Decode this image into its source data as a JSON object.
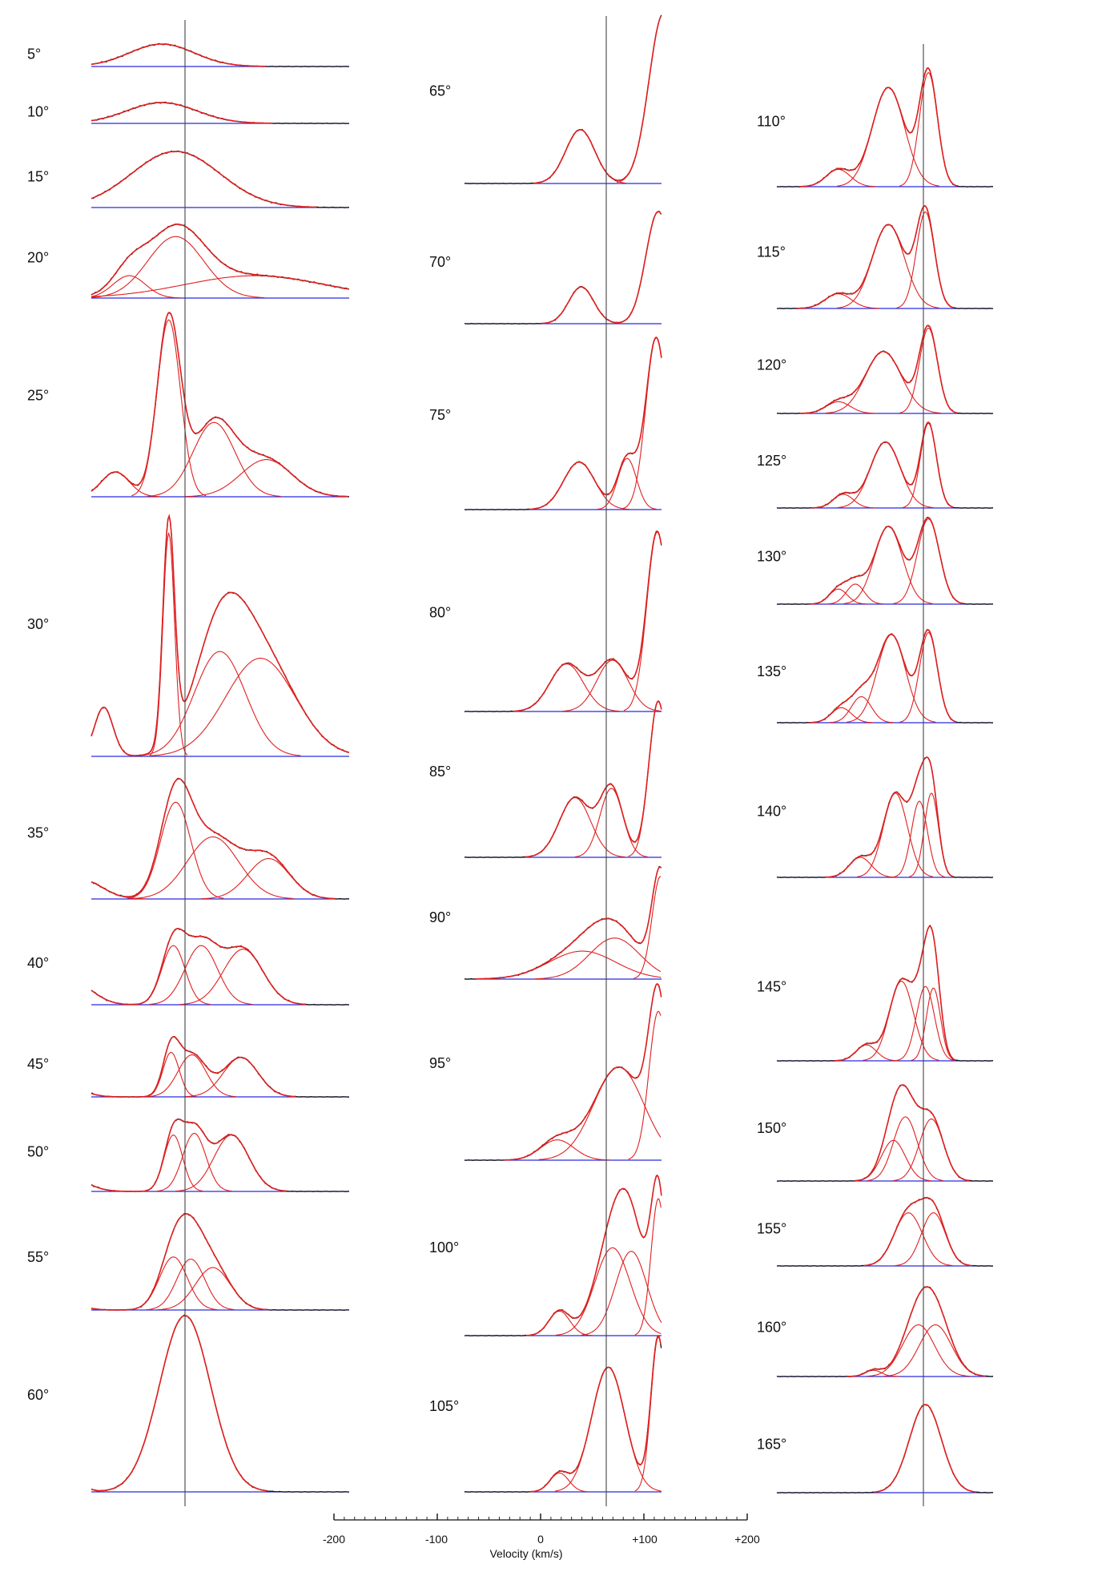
{
  "chart_data": {
    "type": "line",
    "title": "",
    "description_of_series": [
      "observed profile (black)",
      "gaussian components and sum (red)",
      "baseline (blue)"
    ],
    "xlabel": "Velocity (km/s)",
    "xlim": [
      -200,
      200
    ],
    "x_ticks": [
      "-200",
      "-100",
      "0",
      "+100",
      "+200"
    ],
    "colors": {
      "observed": "#111111",
      "fit": "#e02020",
      "baseline": "#2a2adf",
      "reference_line": "#444444"
    },
    "columns": [
      {
        "panels": [
          {
            "label": "5°",
            "components": [
              {
                "center": -20,
                "sigma": 28,
                "amp": 0.12
              }
            ]
          },
          {
            "label": "10°",
            "components": [
              {
                "center": -20,
                "sigma": 30,
                "amp": 0.12
              }
            ]
          },
          {
            "label": "15°",
            "components": [
              {
                "center": -8,
                "sigma": 38,
                "amp": 0.36
              }
            ]
          },
          {
            "label": "20°",
            "components": [
              {
                "center": -48,
                "sigma": 14,
                "amp": 0.16
              },
              {
                "center": -8,
                "sigma": 24,
                "amp": 0.44
              },
              {
                "center": 60,
                "sigma": 60,
                "amp": 0.16
              }
            ]
          },
          {
            "label": "25°",
            "components": [
              {
                "center": -60,
                "sigma": 12,
                "amp": 0.14
              },
              {
                "center": -14,
                "sigma": 10,
                "amp": 1.0
              },
              {
                "center": 25,
                "sigma": 18,
                "amp": 0.42
              },
              {
                "center": 70,
                "sigma": 22,
                "amp": 0.21
              }
            ]
          },
          {
            "label": "30°",
            "components": [
              {
                "center": -70,
                "sigma": 8,
                "amp": 0.22
              },
              {
                "center": -14,
                "sigma": 5,
                "amp": 1.0
              },
              {
                "center": 30,
                "sigma": 22,
                "amp": 0.47
              },
              {
                "center": 65,
                "sigma": 30,
                "amp": 0.44
              }
            ]
          },
          {
            "label": "35°",
            "components": [
              {
                "center": -88,
                "sigma": 17,
                "amp": 0.13
              },
              {
                "center": -8,
                "sigma": 13,
                "amp": 0.67
              },
              {
                "center": 24,
                "sigma": 22,
                "amp": 0.43
              },
              {
                "center": 72,
                "sigma": 18,
                "amp": 0.28
              }
            ]
          },
          {
            "label": "40°",
            "components": [
              {
                "center": -95,
                "sigma": 16,
                "amp": 0.12
              },
              {
                "center": -10,
                "sigma": 10,
                "amp": 0.33
              },
              {
                "center": 14,
                "sigma": 14,
                "amp": 0.33
              },
              {
                "center": 50,
                "sigma": 17,
                "amp": 0.31
              }
            ]
          },
          {
            "label": "45°",
            "components": [
              {
                "center": -105,
                "sigma": 15,
                "amp": 0.1
              },
              {
                "center": -12,
                "sigma": 7,
                "amp": 0.35
              },
              {
                "center": 6,
                "sigma": 12,
                "amp": 0.33
              },
              {
                "center": 48,
                "sigma": 15,
                "amp": 0.31
              }
            ]
          },
          {
            "label": "50°",
            "components": [
              {
                "center": -105,
                "sigma": 17,
                "amp": 0.11
              },
              {
                "center": -10,
                "sigma": 8,
                "amp": 0.34
              },
              {
                "center": 8,
                "sigma": 10,
                "amp": 0.35
              },
              {
                "center": 40,
                "sigma": 15,
                "amp": 0.34
              }
            ]
          },
          {
            "label": "55°",
            "components": [
              {
                "center": -115,
                "sigma": 16,
                "amp": 0.16
              },
              {
                "center": -10,
                "sigma": 12,
                "amp": 0.5
              },
              {
                "center": 5,
                "sigma": 12,
                "amp": 0.48
              },
              {
                "center": 24,
                "sigma": 15,
                "amp": 0.4
              }
            ]
          },
          {
            "label": "60°",
            "components": [
              {
                "center": -113,
                "sigma": 13,
                "amp": 0.28
              },
              {
                "center": 0,
                "sigma": 22,
                "amp": 0.88
              }
            ]
          }
        ]
      },
      {
        "panels": [
          {
            "label": "65°",
            "components": [
              {
                "center": -25,
                "sigma": 14,
                "amp": 0.31
              },
              {
                "center": 55,
                "sigma": 14,
                "amp": 0.98
              }
            ]
          },
          {
            "label": "70°",
            "components": [
              {
                "center": -24,
                "sigma": 12,
                "amp": 0.21
              },
              {
                "center": 50,
                "sigma": 12,
                "amp": 0.64
              }
            ]
          },
          {
            "label": "75°",
            "components": [
              {
                "center": -26,
                "sigma": 15,
                "amp": 0.26
              },
              {
                "center": 20,
                "sigma": 9,
                "amp": 0.28
              },
              {
                "center": 48,
                "sigma": 10,
                "amp": 0.94
              }
            ]
          },
          {
            "label": "80°",
            "components": [
              {
                "center": -38,
                "sigma": 16,
                "amp": 0.26
              },
              {
                "center": 6,
                "sigma": 15,
                "amp": 0.28
              },
              {
                "center": 49,
                "sigma": 10,
                "amp": 0.98
              }
            ]
          },
          {
            "label": "85°",
            "components": [
              {
                "center": -30,
                "sigma": 15,
                "amp": 0.26
              },
              {
                "center": 5,
                "sigma": 11,
                "amp": 0.3
              },
              {
                "center": 50,
                "sigma": 9,
                "amp": 0.68
              }
            ]
          },
          {
            "label": "90°",
            "components": [
              {
                "center": -23,
                "sigma": 32,
                "amp": 0.15
              },
              {
                "center": 8,
                "sigma": 24,
                "amp": 0.22
              },
              {
                "center": 52,
                "sigma": 8,
                "amp": 0.55
              }
            ]
          },
          {
            "label": "95°",
            "components": [
              {
                "center": -47,
                "sigma": 16,
                "amp": 0.12
              },
              {
                "center": 12,
                "sigma": 24,
                "amp": 0.55
              },
              {
                "center": 50,
                "sigma": 9,
                "amp": 0.88
              }
            ]
          },
          {
            "label": "100°",
            "components": [
              {
                "center": -45,
                "sigma": 10,
                "amp": 0.14
              },
              {
                "center": 6,
                "sigma": 17,
                "amp": 0.5
              },
              {
                "center": 24,
                "sigma": 15,
                "amp": 0.48
              },
              {
                "center": 50,
                "sigma": 7,
                "amp": 0.78
              }
            ]
          },
          {
            "label": "105°",
            "components": [
              {
                "center": -45,
                "sigma": 9,
                "amp": 0.1
              },
              {
                "center": 2,
                "sigma": 16,
                "amp": 0.66
              },
              {
                "center": 50,
                "sigma": 7,
                "amp": 0.82
              }
            ]
          }
        ]
      },
      {
        "panels": [
          {
            "label": "110°",
            "components": [
              {
                "center": -85,
                "sigma": 12,
                "amp": 0.14
              },
              {
                "center": -35,
                "sigma": 16,
                "amp": 0.8
              },
              {
                "center": 5,
                "sigma": 9,
                "amp": 0.92
              }
            ]
          },
          {
            "label": "115°",
            "components": [
              {
                "center": -85,
                "sigma": 13,
                "amp": 0.14
              },
              {
                "center": -35,
                "sigma": 16,
                "amp": 0.8
              },
              {
                "center": 2,
                "sigma": 9,
                "amp": 0.92
              }
            ]
          },
          {
            "label": "120°",
            "components": [
              {
                "center": -85,
                "sigma": 12,
                "amp": 0.1
              },
              {
                "center": -40,
                "sigma": 18,
                "amp": 0.53
              },
              {
                "center": 5,
                "sigma": 9,
                "amp": 0.73
              }
            ]
          },
          {
            "label": "125°",
            "components": [
              {
                "center": -80,
                "sigma": 10,
                "amp": 0.11
              },
              {
                "center": -38,
                "sigma": 15,
                "amp": 0.53
              },
              {
                "center": 5,
                "sigma": 8,
                "amp": 0.68
              }
            ]
          },
          {
            "label": "130°",
            "components": [
              {
                "center": -85,
                "sigma": 9,
                "amp": 0.12
              },
              {
                "center": -68,
                "sigma": 9,
                "amp": 0.16
              },
              {
                "center": -35,
                "sigma": 14,
                "amp": 0.62
              },
              {
                "center": 5,
                "sigma": 11,
                "amp": 0.68
              }
            ]
          },
          {
            "label": "135°",
            "components": [
              {
                "center": -82,
                "sigma": 10,
                "amp": 0.15
              },
              {
                "center": -62,
                "sigma": 10,
                "amp": 0.26
              },
              {
                "center": -32,
                "sigma": 14,
                "amp": 0.88
              },
              {
                "center": 5,
                "sigma": 9,
                "amp": 0.9
              }
            ]
          },
          {
            "label": "140°",
            "components": [
              {
                "center": -63,
                "sigma": 11,
                "amp": 0.25
              },
              {
                "center": -28,
                "sigma": 12,
                "amp": 1.05
              },
              {
                "center": -4,
                "sigma": 8,
                "amp": 0.95
              },
              {
                "center": 8,
                "sigma": 7,
                "amp": 1.05
              }
            ]
          },
          {
            "label": "145°",
            "components": [
              {
                "center": -57,
                "sigma": 10,
                "amp": 0.21
              },
              {
                "center": -22,
                "sigma": 12,
                "amp": 1.05
              },
              {
                "center": 2,
                "sigma": 9,
                "amp": 0.98
              },
              {
                "center": 10,
                "sigma": 7,
                "amp": 0.96
              }
            ]
          },
          {
            "label": "150°",
            "components": [
              {
                "center": -30,
                "sigma": 12,
                "amp": 0.38
              },
              {
                "center": -18,
                "sigma": 12,
                "amp": 0.6
              },
              {
                "center": 8,
                "sigma": 12,
                "amp": 0.58
              }
            ]
          },
          {
            "label": "155°",
            "components": [
              {
                "center": -15,
                "sigma": 14,
                "amp": 0.33
              },
              {
                "center": 10,
                "sigma": 12,
                "amp": 0.33
              }
            ]
          },
          {
            "label": "160°",
            "components": [
              {
                "center": -50,
                "sigma": 8,
                "amp": 0.06
              },
              {
                "center": -5,
                "sigma": 16,
                "amp": 0.5
              },
              {
                "center": 12,
                "sigma": 16,
                "amp": 0.5
              }
            ]
          },
          {
            "label": "165°",
            "components": [
              {
                "center": 2,
                "sigma": 16,
                "amp": 0.5
              }
            ]
          }
        ]
      }
    ]
  }
}
